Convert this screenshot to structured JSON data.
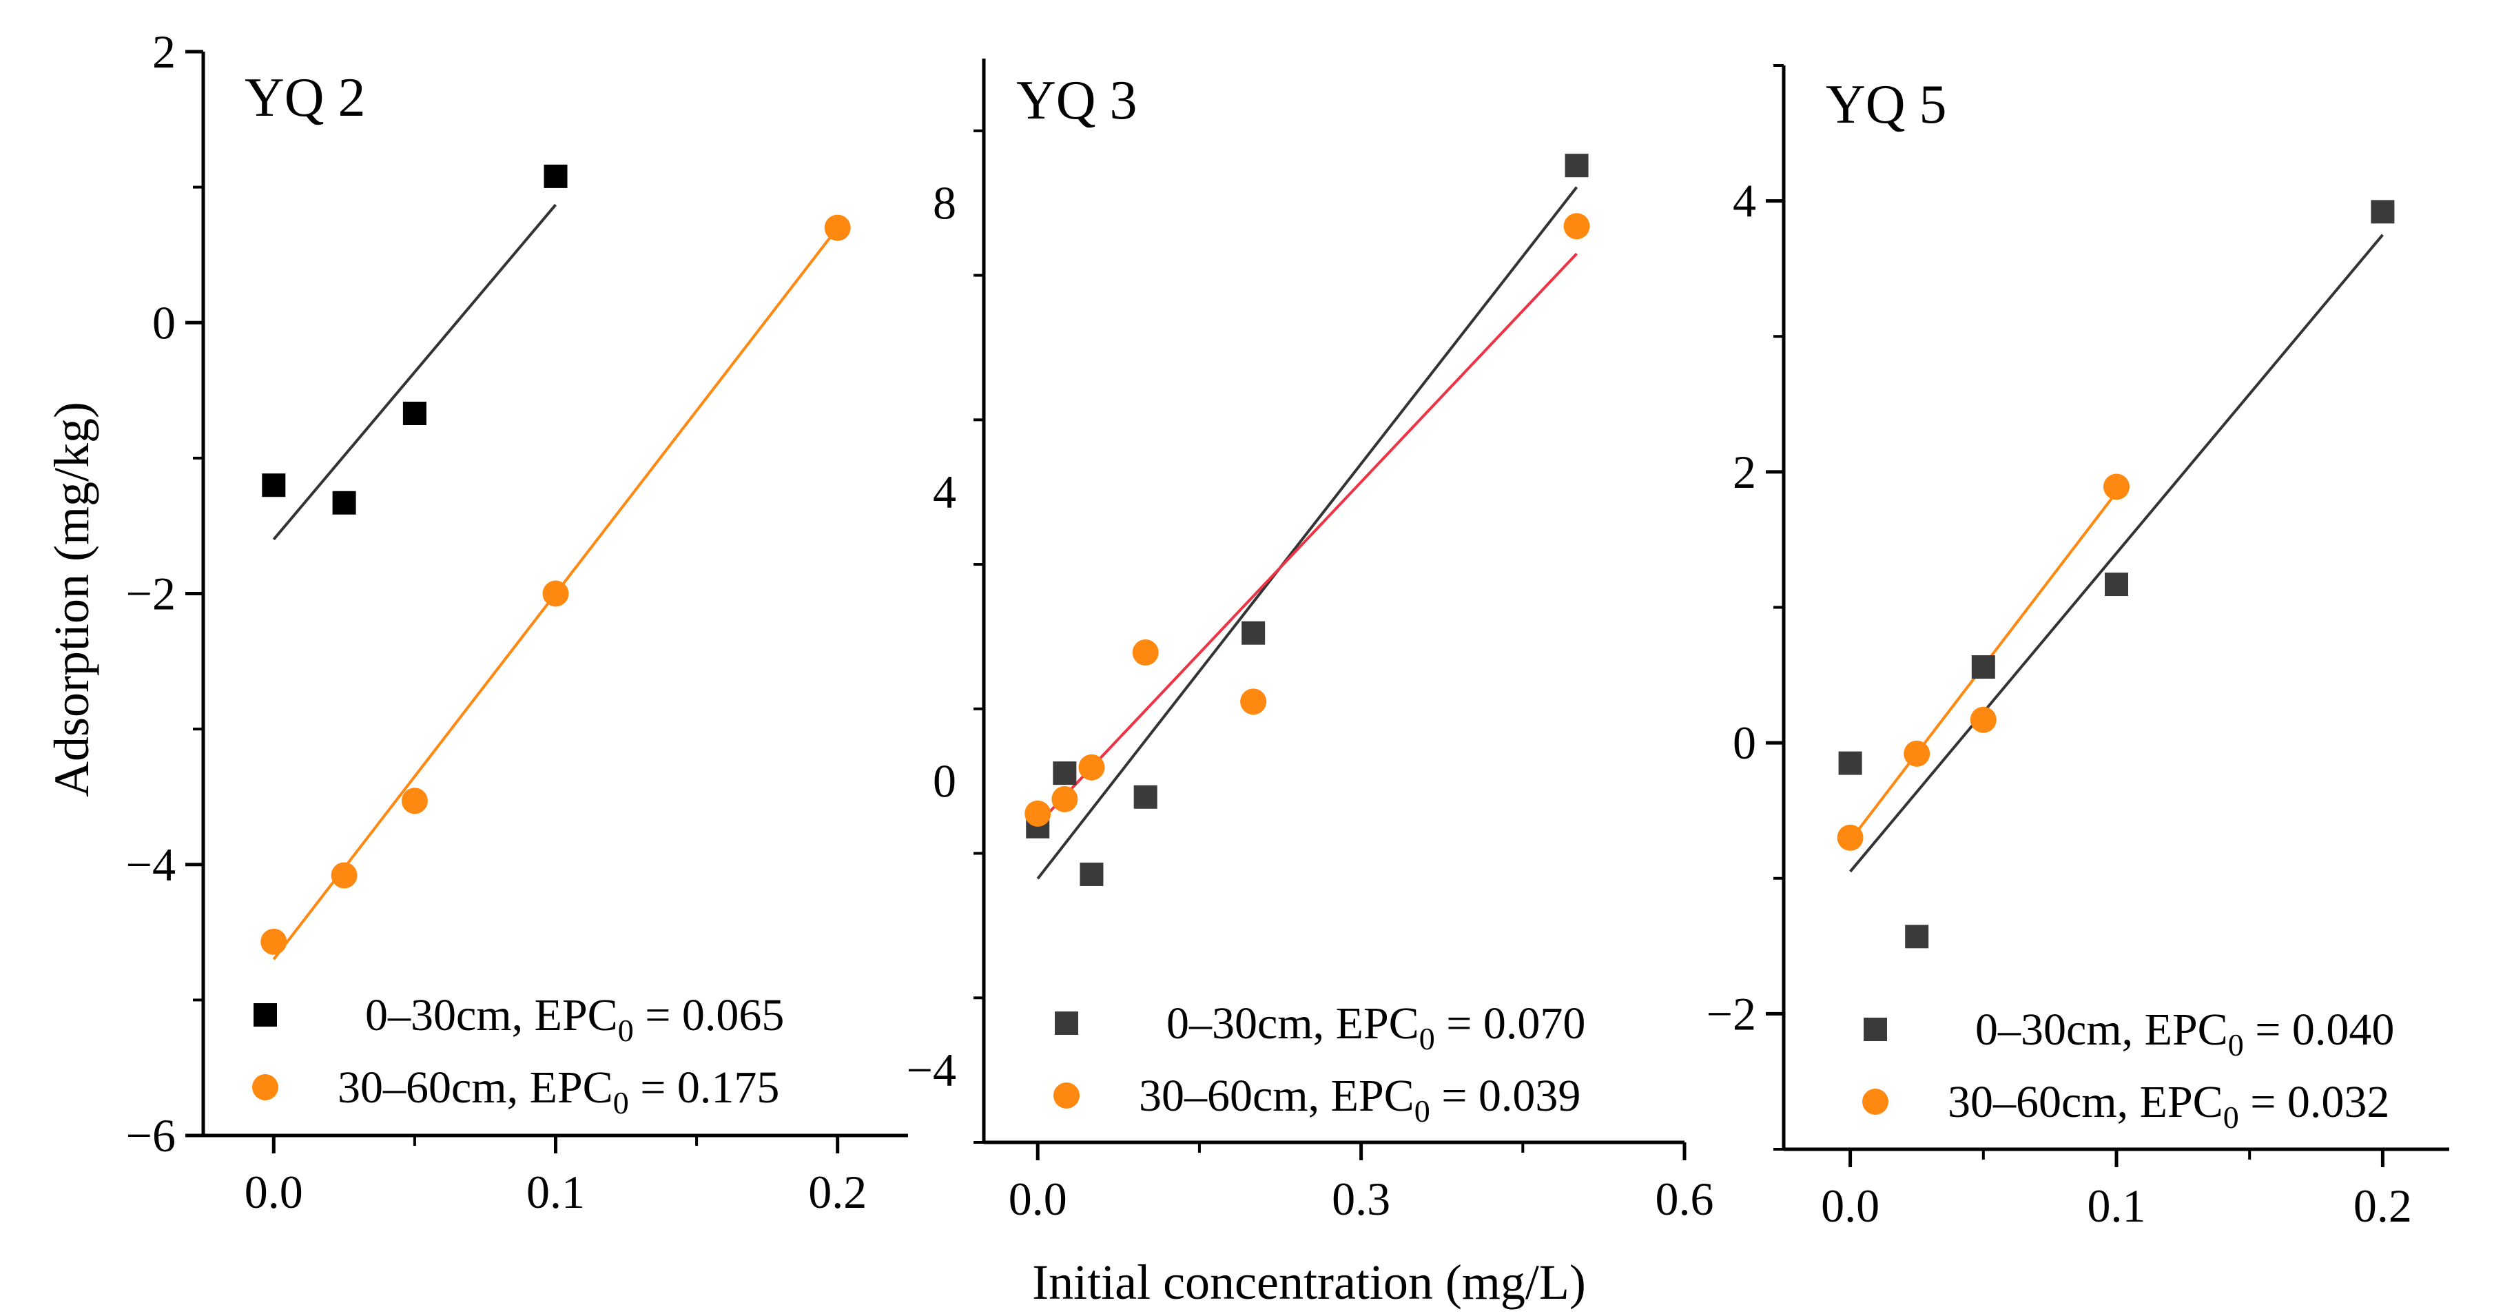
{
  "chart_data": [
    {
      "type": "scatter",
      "title": "YQ 2",
      "xlim": [
        -0.025,
        0.225
      ],
      "ylim": [
        -6,
        2
      ],
      "xticks": [
        0.0,
        0.1,
        0.2
      ],
      "xtick_labels": [
        "0.0",
        "0.1",
        "0.2"
      ],
      "yticks": [
        -6,
        -4,
        -2,
        0,
        2
      ],
      "ytick_labels": [
        "−6",
        "−4",
        "−2",
        "0",
        "2"
      ],
      "ylabel": "Adsorption (mg/kg)",
      "legend_position": "bottom-left",
      "series": [
        {
          "legend": "0–30cm, EPC",
          "legend_sub": "0",
          "legend_value": " = 0.065",
          "marker": "square",
          "color": "#000000",
          "line_color": "#333333",
          "x": [
            0,
            0.025,
            0.05,
            0.1
          ],
          "y": [
            -1.2,
            -1.33,
            -0.67,
            1.08
          ],
          "fit": {
            "x": [
              0,
              0.1
            ],
            "y": [
              -1.6,
              0.87
            ]
          }
        },
        {
          "legend": "30–60cm, EPC",
          "legend_sub": "0",
          "legend_value": " = 0.175",
          "marker": "circle",
          "color": "#ff8811",
          "line_color": "#ff8811",
          "x": [
            0,
            0.025,
            0.05,
            0.1,
            0.2
          ],
          "y": [
            -4.57,
            -4.08,
            -3.53,
            -2.0,
            0.7
          ],
          "fit": {
            "x": [
              0,
              0.2
            ],
            "y": [
              -4.7,
              0.7
            ]
          }
        }
      ]
    },
    {
      "type": "scatter",
      "title": "YQ 3",
      "xlim": [
        -0.05,
        0.6
      ],
      "ylim": [
        -5,
        10
      ],
      "xticks": [
        0.0,
        0.3,
        0.6
      ],
      "xtick_labels": [
        "0.0",
        "0.3",
        "0.6"
      ],
      "yticks": [
        -4,
        0,
        4,
        8
      ],
      "ytick_labels": [
        "−4",
        "0",
        "4",
        "8"
      ],
      "xlabel": "Initial concentration (mg/L)",
      "legend_position": "bottom-left",
      "series": [
        {
          "legend": "0–30cm, EPC",
          "legend_sub": "0",
          "legend_value": " = 0.070",
          "marker": "square",
          "color": "#3a3a3a",
          "line_color": "#333333",
          "x": [
            0,
            0.025,
            0.05,
            0.1,
            0.2,
            0.5
          ],
          "y": [
            -0.63,
            0.11,
            -1.29,
            -0.22,
            2.05,
            8.52
          ],
          "fit": {
            "x": [
              0,
              0.5
            ],
            "y": [
              -1.35,
              8.22
            ]
          }
        },
        {
          "legend": "30–60cm, EPC",
          "legend_sub": "0",
          "legend_value": " = 0.039",
          "marker": "circle",
          "color": "#ff8811",
          "line_color": "#ee3344",
          "x": [
            0,
            0.025,
            0.05,
            0.1,
            0.2,
            0.5
          ],
          "y": [
            -0.45,
            -0.25,
            0.19,
            1.78,
            1.1,
            7.68
          ],
          "fit": {
            "x": [
              0,
              0.5
            ],
            "y": [
              -0.6,
              7.3
            ]
          }
        }
      ]
    },
    {
      "type": "scatter",
      "title": "YQ 5",
      "xlim": [
        -0.025,
        0.225
      ],
      "ylim": [
        -3,
        5
      ],
      "xticks": [
        0.0,
        0.1,
        0.2
      ],
      "xtick_labels": [
        "0.0",
        "0.1",
        "0.2"
      ],
      "yticks": [
        -2,
        0,
        2,
        4
      ],
      "ytick_labels": [
        "−2",
        "0",
        "2",
        "4"
      ],
      "legend_position": "bottom-left",
      "series": [
        {
          "legend": "0–30cm, EPC",
          "legend_sub": "0",
          "legend_value": " = 0.040",
          "marker": "square",
          "color": "#3a3a3a",
          "line_color": "#333333",
          "x": [
            0,
            0.025,
            0.05,
            0.1,
            0.2
          ],
          "y": [
            -0.15,
            -1.43,
            0.56,
            1.17,
            3.92
          ],
          "fit": {
            "x": [
              0,
              0.2
            ],
            "y": [
              -0.95,
              3.75
            ]
          }
        },
        {
          "legend": "30–60cm, EPC",
          "legend_sub": "0",
          "legend_value": " = 0.032",
          "marker": "circle",
          "color": "#ff8811",
          "line_color": "#ff8811",
          "x": [
            0,
            0.025,
            0.05,
            0.1
          ],
          "y": [
            -0.7,
            -0.08,
            0.17,
            1.89
          ],
          "fit": {
            "x": [
              0,
              0.1
            ],
            "y": [
              -0.72,
              1.85
            ]
          }
        }
      ]
    }
  ]
}
